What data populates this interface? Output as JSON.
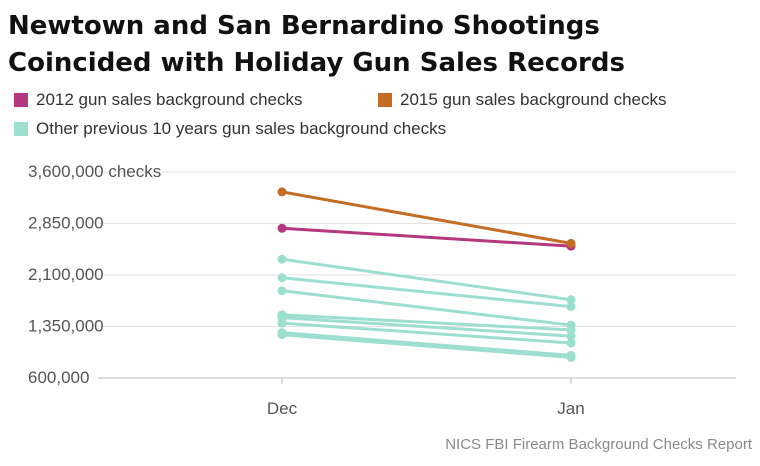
{
  "chart_data": {
    "type": "line",
    "title": "Newtown and San Bernardino Shootings Coincided with Holiday Gun Sales Records",
    "categories": [
      "Dec",
      "Jan"
    ],
    "y_ticks": [
      "600,000",
      "1,350,000",
      "2,100,000",
      "2,850,000",
      "3,600,000 checks"
    ],
    "y_tick_values": [
      600000,
      1350000,
      2100000,
      2850000,
      3600000
    ],
    "ylim": [
      600000,
      3600000
    ],
    "grid": true,
    "legend_position": "top",
    "legend": [
      {
        "label": "2012 gun sales background checks",
        "color": "#b5377e"
      },
      {
        "label": "2015 gun sales background checks",
        "color": "#c46d24"
      },
      {
        "label": "Other previous 10 years gun sales background checks",
        "color": "#9ddfcf"
      }
    ],
    "series": [
      {
        "group": "other",
        "color": "#9ddfcf",
        "values": [
          2330000,
          1740000
        ]
      },
      {
        "group": "other",
        "color": "#9ddfcf",
        "values": [
          2060000,
          1640000
        ]
      },
      {
        "group": "other",
        "color": "#9ddfcf",
        "values": [
          1870000,
          1370000
        ]
      },
      {
        "group": "other",
        "color": "#9ddfcf",
        "values": [
          1520000,
          1300000
        ]
      },
      {
        "group": "other",
        "color": "#9ddfcf",
        "values": [
          1480000,
          1210000
        ]
      },
      {
        "group": "other",
        "color": "#9ddfcf",
        "values": [
          1400000,
          1110000
        ]
      },
      {
        "group": "other",
        "color": "#9ddfcf",
        "values": [
          1260000,
          930000
        ]
      },
      {
        "group": "other",
        "color": "#9ddfcf",
        "values": [
          1230000,
          900000
        ]
      },
      {
        "name": "2012 gun sales background checks",
        "group": "2012",
        "color": "#b5377e",
        "values": [
          2780000,
          2520000
        ]
      },
      {
        "name": "2015 gun sales background checks",
        "group": "2015",
        "color": "#c46d24",
        "values": [
          3310000,
          2560000
        ]
      }
    ],
    "source": "NICS FBI Firearm Background Checks Report"
  }
}
